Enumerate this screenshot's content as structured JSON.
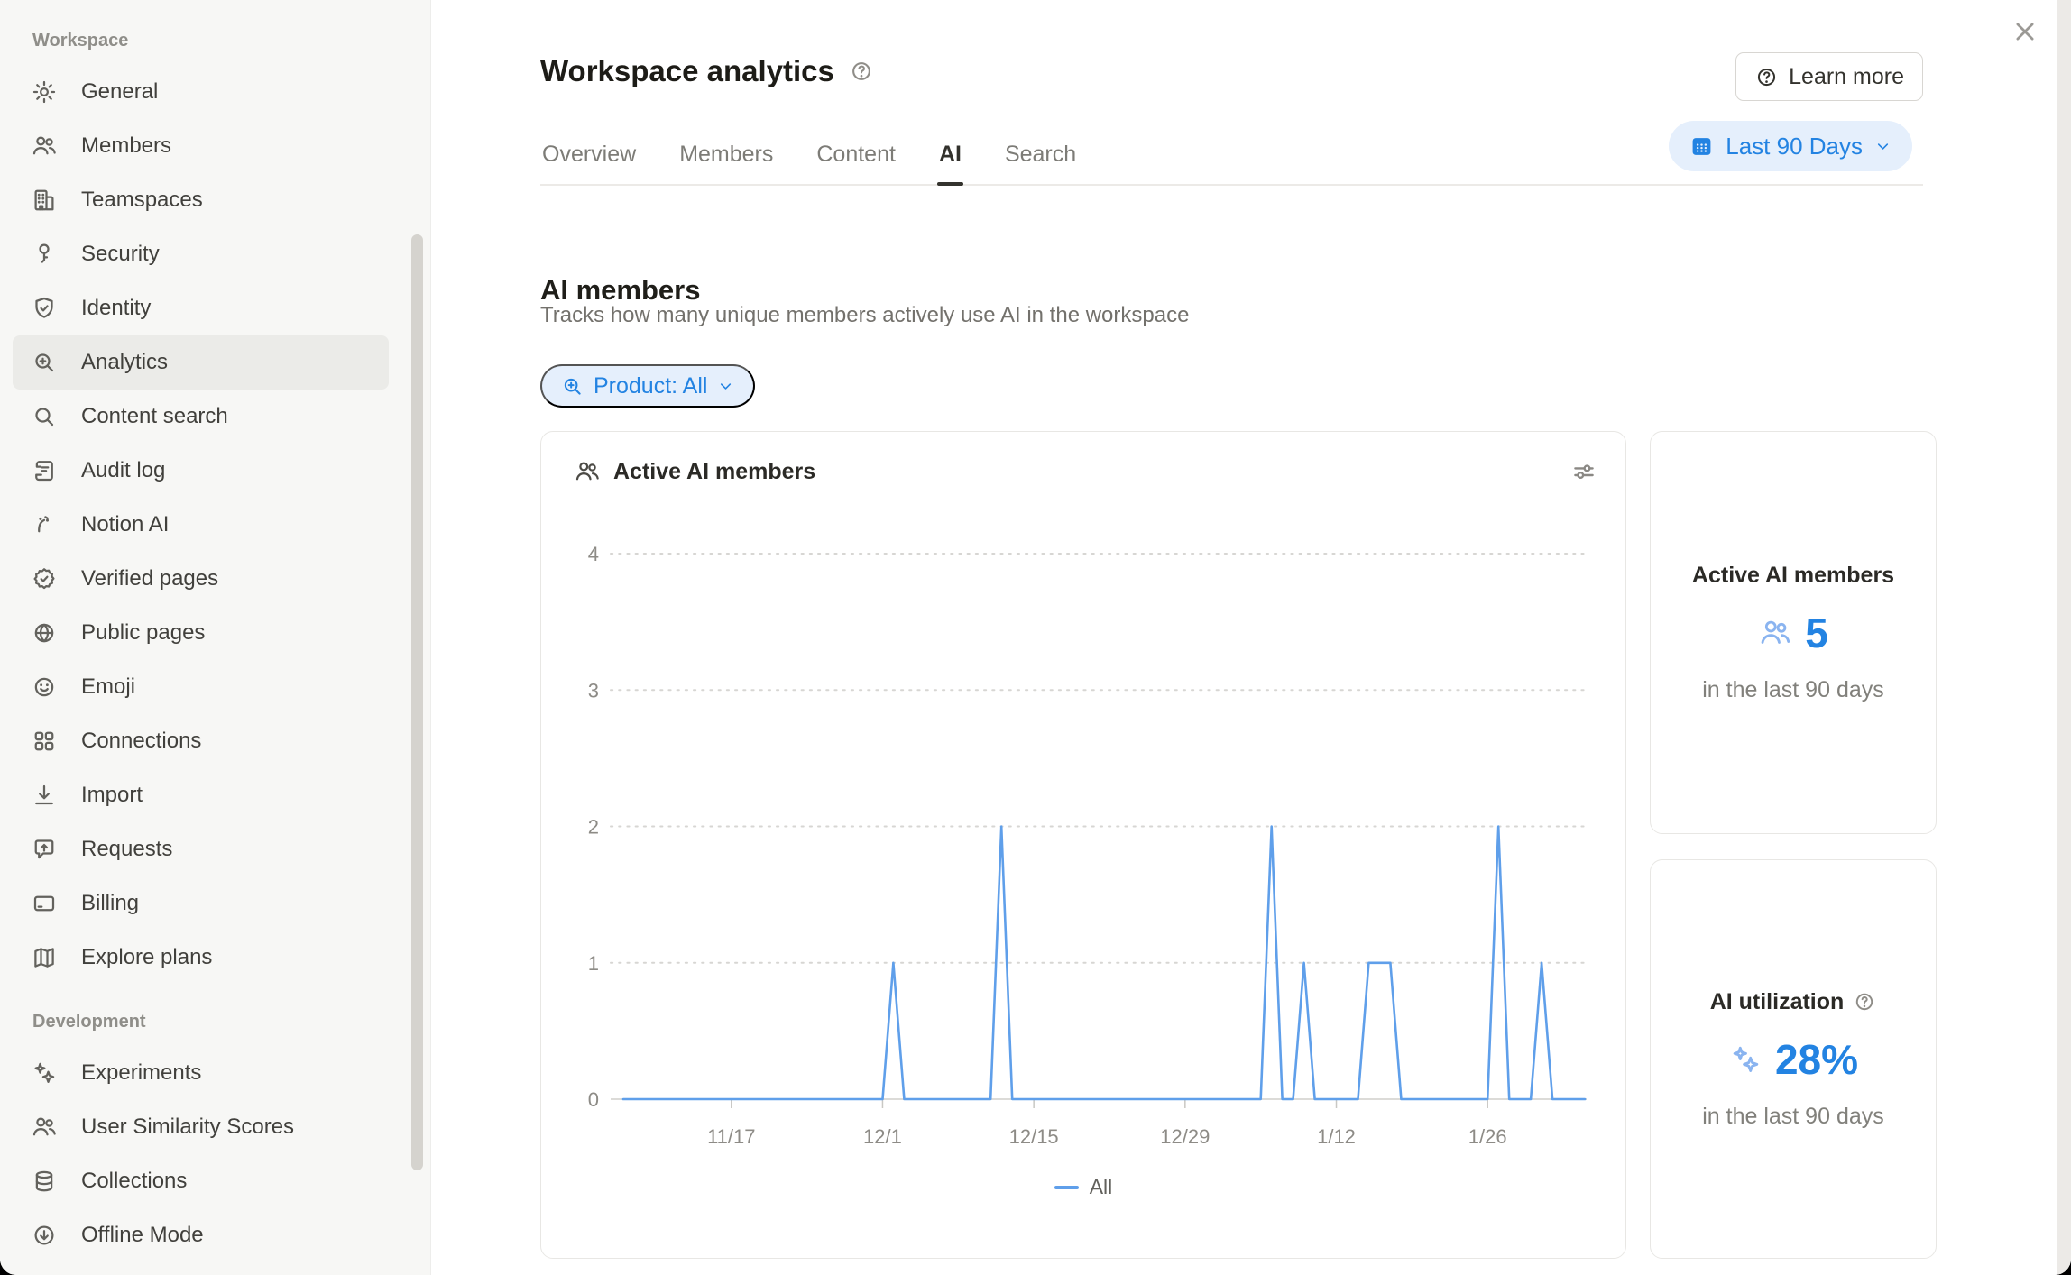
{
  "header": {
    "title": "Workspace analytics",
    "learn_more_label": "Learn more"
  },
  "sidebar": {
    "sections": [
      {
        "label": "Workspace",
        "items": [
          {
            "label": "General",
            "icon": "gear-icon",
            "slug": "general"
          },
          {
            "label": "Members",
            "icon": "people-icon",
            "slug": "members"
          },
          {
            "label": "Teamspaces",
            "icon": "building-icon",
            "slug": "teamspaces"
          },
          {
            "label": "Security",
            "icon": "key-icon",
            "slug": "security"
          },
          {
            "label": "Identity",
            "icon": "shield-check-icon",
            "slug": "identity"
          },
          {
            "label": "Analytics",
            "icon": "magnifier-plus-icon",
            "slug": "analytics",
            "selected": true
          },
          {
            "label": "Content search",
            "icon": "magnifier-icon",
            "slug": "content-search"
          },
          {
            "label": "Audit log",
            "icon": "scroll-icon",
            "slug": "audit-log"
          },
          {
            "label": "Notion AI",
            "icon": "ai-face-icon",
            "slug": "notion-ai"
          },
          {
            "label": "Verified pages",
            "icon": "badge-check-icon",
            "slug": "verified-pages"
          },
          {
            "label": "Public pages",
            "icon": "globe-icon",
            "slug": "public-pages"
          },
          {
            "label": "Emoji",
            "icon": "smiley-icon",
            "slug": "emoji"
          },
          {
            "label": "Connections",
            "icon": "grid-icon",
            "slug": "connections"
          },
          {
            "label": "Import",
            "icon": "import-arrow-icon",
            "slug": "import"
          },
          {
            "label": "Requests",
            "icon": "speech-bubble-up-icon",
            "slug": "requests"
          },
          {
            "label": "Billing",
            "icon": "credit-card-icon",
            "slug": "billing"
          },
          {
            "label": "Explore plans",
            "icon": "map-icon",
            "slug": "explore-plans"
          }
        ]
      },
      {
        "label": "Development",
        "items": [
          {
            "label": "Experiments",
            "icon": "sparkles-icon",
            "slug": "experiments"
          },
          {
            "label": "User Similarity Scores",
            "icon": "people-icon",
            "slug": "user-similarity-scores"
          },
          {
            "label": "Collections",
            "icon": "database-icon",
            "slug": "collections"
          },
          {
            "label": "Offline Mode",
            "icon": "arrow-down-circle-icon",
            "slug": "offline-mode"
          }
        ]
      }
    ]
  },
  "tabs": [
    {
      "label": "Overview"
    },
    {
      "label": "Members"
    },
    {
      "label": "Content"
    },
    {
      "label": "AI",
      "active": true
    },
    {
      "label": "Search"
    }
  ],
  "date_filter": {
    "label": "Last 90 Days"
  },
  "section": {
    "title": "AI members",
    "description": "Tracks how many unique members actively use AI in the workspace"
  },
  "product_filter": {
    "label": "Product: All"
  },
  "chart_card": {
    "title": "Active AI members"
  },
  "chart_data": {
    "type": "line",
    "title": "Active AI members",
    "ylim": [
      0,
      4
    ],
    "y_ticks": [
      0,
      1,
      2,
      3,
      4
    ],
    "x_tick_labels": [
      "11/17",
      "12/1",
      "12/15",
      "12/29",
      "1/12",
      "1/26"
    ],
    "x_tick_day_index": [
      10,
      24,
      38,
      52,
      66,
      80
    ],
    "date_range": {
      "start": "11/7",
      "end": "2/4",
      "days": 90
    },
    "grid": "dotted horizontal",
    "legend_position": "bottom",
    "nonzero_points": [
      {
        "date": "12/2",
        "value": 1
      },
      {
        "date": "12/12",
        "value": 2
      },
      {
        "date": "1/6",
        "value": 2
      },
      {
        "date": "1/9",
        "value": 1
      },
      {
        "date": "1/15",
        "value": 1
      },
      {
        "date": "1/16",
        "value": 1
      },
      {
        "date": "1/17",
        "value": 1
      },
      {
        "date": "1/27",
        "value": 2
      },
      {
        "date": "1/31",
        "value": 1
      }
    ],
    "series": [
      {
        "name": "All",
        "values": [
          0,
          0,
          0,
          0,
          0,
          0,
          0,
          0,
          0,
          0,
          0,
          0,
          0,
          0,
          0,
          0,
          0,
          0,
          0,
          0,
          0,
          0,
          0,
          0,
          0,
          1,
          0,
          0,
          0,
          0,
          0,
          0,
          0,
          0,
          0,
          2,
          0,
          0,
          0,
          0,
          0,
          0,
          0,
          0,
          0,
          0,
          0,
          0,
          0,
          0,
          0,
          0,
          0,
          0,
          0,
          0,
          0,
          0,
          0,
          0,
          2,
          0,
          0,
          1,
          0,
          0,
          0,
          0,
          0,
          1,
          1,
          1,
          0,
          0,
          0,
          0,
          0,
          0,
          0,
          0,
          0,
          2,
          0,
          0,
          0,
          1,
          0,
          0,
          0,
          0
        ]
      }
    ]
  },
  "stat_cards": [
    {
      "title": "Active AI members",
      "icon": "people-icon",
      "value": "5",
      "caption": "in the last 90 days"
    },
    {
      "title": "AI utilization",
      "icon": "sparkles-icon",
      "value": "28%",
      "caption": "in the last 90 days"
    }
  ],
  "colors": {
    "accent_blue": "#2383e2",
    "chart_line": "#5f9fea",
    "light_blue_icon": "#8ab4f0",
    "pill_bg": "#e5effc",
    "sidebar_bg": "#f7f7f5"
  }
}
